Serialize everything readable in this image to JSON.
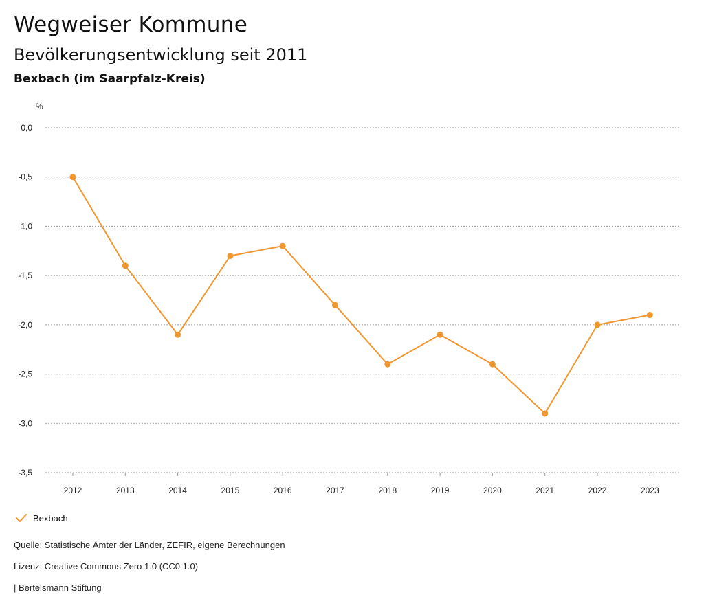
{
  "header": {
    "title": "Wegweiser Kommune",
    "subtitle": "Bevölkerungsentwicklung seit 2011",
    "region": "Bexbach (im Saarpfalz-Kreis)"
  },
  "colors": {
    "series": "#f0962e",
    "grid": "#9a9a9a"
  },
  "chart_data": {
    "type": "line",
    "title": "Bevölkerungsentwicklung seit 2011",
    "ylabel": "%",
    "xlabel": "",
    "ylim": [
      -3.5,
      0.0
    ],
    "ytick_values": [
      0.0,
      -0.5,
      -1.0,
      -1.5,
      -2.0,
      -2.5,
      -3.0,
      -3.5
    ],
    "ytick_labels": [
      "0,0",
      "-0,5",
      "-1,0",
      "-1,5",
      "-2,0",
      "-2,5",
      "-3,0",
      "-3,5"
    ],
    "categories": [
      "2012",
      "2013",
      "2014",
      "2015",
      "2016",
      "2017",
      "2018",
      "2019",
      "2020",
      "2021",
      "2022",
      "2023"
    ],
    "series": [
      {
        "name": "Bexbach",
        "values": [
          -0.5,
          -1.4,
          -2.1,
          -1.3,
          -1.2,
          -1.8,
          -2.4,
          -2.1,
          -2.4,
          -2.9,
          -2.0,
          -1.9
        ]
      }
    ],
    "grid": true,
    "legend": "bottom-left"
  },
  "legend": {
    "label": "Bexbach"
  },
  "footer": {
    "source": "Quelle: Statistische Ämter der Länder, ZEFIR, eigene Berechnungen",
    "license": "Lizenz: Creative Commons Zero 1.0 (CC0 1.0)",
    "publisher": "| Bertelsmann Stiftung"
  }
}
